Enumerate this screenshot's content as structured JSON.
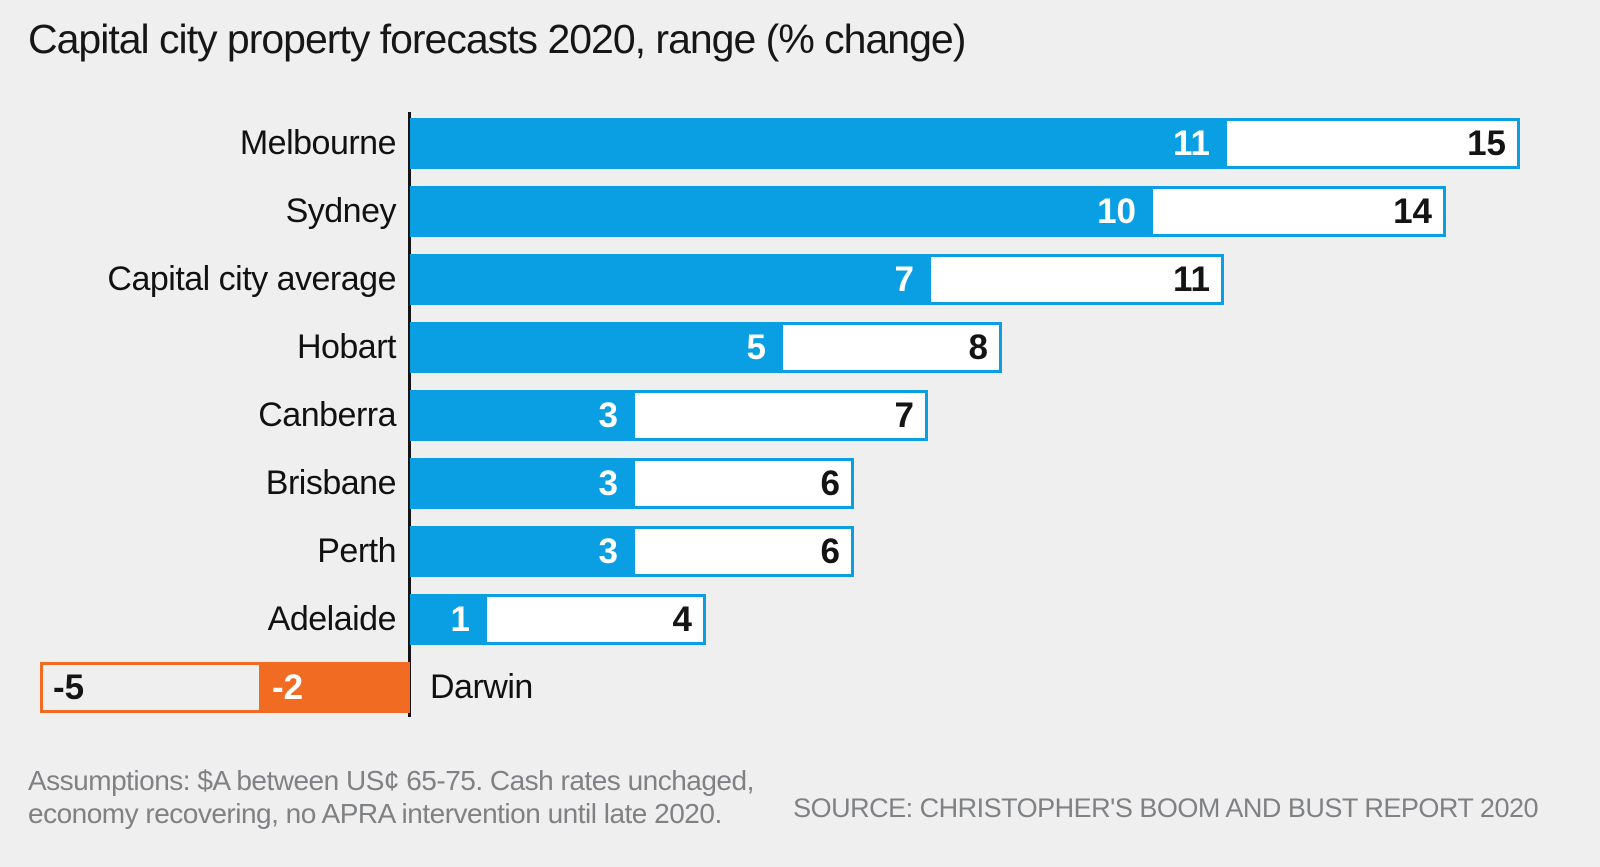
{
  "title": "Capital city property forecasts 2020, range (% change)",
  "footer": {
    "assumptions_line1": "Assumptions: $A between US¢ 65-75. Cash rates unchaged,",
    "assumptions_line2": "economy recovering, no APRA intervention until late 2020.",
    "source": "SOURCE: CHRISTOPHER'S BOOM AND BUST REPORT 2020"
  },
  "colors": {
    "bar_blue": "#0a9fe2",
    "bar_orange": "#f16c22",
    "range_fill": "#ffffff",
    "background": "#efefef",
    "axis": "#141414",
    "text_dark": "#111111",
    "text_gray": "#7f8184"
  },
  "chart_data": {
    "type": "bar",
    "orientation": "horizontal",
    "title": "Capital city property forecasts 2020, range (% change)",
    "categories": [
      "Melbourne",
      "Sydney",
      "Capital city average",
      "Hobart",
      "Canberra",
      "Brisbane",
      "Perth",
      "Adelaide",
      "Darwin"
    ],
    "series": [
      {
        "name": "range_low",
        "values": [
          11,
          10,
          7,
          5,
          3,
          3,
          3,
          1,
          -5
        ]
      },
      {
        "name": "range_high",
        "values": [
          15,
          14,
          11,
          8,
          7,
          6,
          6,
          4,
          -2
        ]
      }
    ],
    "xlim": [
      -5,
      15
    ],
    "baseline_at": 0,
    "grid": false,
    "legend": false,
    "ylabel": "",
    "xlabel": ""
  }
}
